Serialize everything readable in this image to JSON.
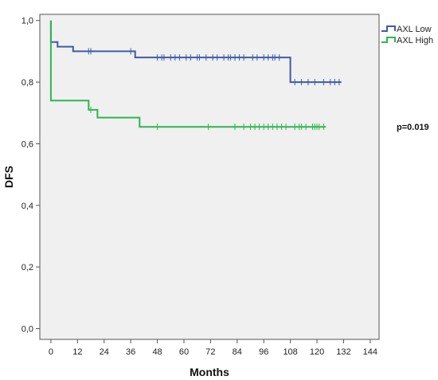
{
  "chart_data": {
    "type": "line",
    "subtype": "kaplan-meier",
    "xlabel": "Months",
    "ylabel": "DFS",
    "xlim": [
      -5,
      148
    ],
    "ylim": [
      -0.035,
      1.02
    ],
    "xticks": [
      0,
      12,
      24,
      36,
      48,
      60,
      72,
      84,
      96,
      108,
      120,
      132,
      144
    ],
    "yticks": [
      {
        "value": 0.0,
        "label": "0,0"
      },
      {
        "value": 0.2,
        "label": "0,2"
      },
      {
        "value": 0.4,
        "label": "0,4"
      },
      {
        "value": 0.6,
        "label": "0,6"
      },
      {
        "value": 0.8,
        "label": "0,8"
      },
      {
        "value": 1.0,
        "label": "1,0"
      }
    ],
    "grid": false,
    "legend_position": "top-right",
    "annotation": "p=0.019",
    "series": [
      {
        "name": "AXL Low",
        "color": "#3b5ca8",
        "steps": [
          [
            0,
            1.0
          ],
          [
            0,
            0.93
          ],
          [
            3,
            0.93
          ],
          [
            3,
            0.915
          ],
          [
            10,
            0.915
          ],
          [
            10,
            0.9
          ],
          [
            38,
            0.9
          ],
          [
            38,
            0.88
          ],
          [
            108,
            0.88
          ],
          [
            108,
            0.8
          ],
          [
            131,
            0.8
          ]
        ],
        "censored": [
          [
            17,
            0.9
          ],
          [
            18,
            0.9
          ],
          [
            36,
            0.9
          ],
          [
            48,
            0.88
          ],
          [
            50,
            0.88
          ],
          [
            51,
            0.88
          ],
          [
            54,
            0.88
          ],
          [
            56,
            0.88
          ],
          [
            58,
            0.88
          ],
          [
            61,
            0.88
          ],
          [
            63,
            0.88
          ],
          [
            66,
            0.88
          ],
          [
            67,
            0.88
          ],
          [
            70,
            0.88
          ],
          [
            73,
            0.88
          ],
          [
            75,
            0.88
          ],
          [
            78,
            0.88
          ],
          [
            80,
            0.88
          ],
          [
            81,
            0.88
          ],
          [
            83,
            0.88
          ],
          [
            85,
            0.88
          ],
          [
            87,
            0.88
          ],
          [
            91,
            0.88
          ],
          [
            93,
            0.88
          ],
          [
            96,
            0.88
          ],
          [
            98,
            0.88
          ],
          [
            100,
            0.88
          ],
          [
            101,
            0.88
          ],
          [
            103,
            0.88
          ],
          [
            110,
            0.8
          ],
          [
            113,
            0.8
          ],
          [
            116,
            0.8
          ],
          [
            119,
            0.8
          ],
          [
            123,
            0.8
          ],
          [
            126,
            0.8
          ],
          [
            128,
            0.8
          ],
          [
            130,
            0.8
          ]
        ]
      },
      {
        "name": "AXL High",
        "color": "#2eb64f",
        "steps": [
          [
            0,
            1.0
          ],
          [
            0,
            0.74
          ],
          [
            17,
            0.74
          ],
          [
            17,
            0.71
          ],
          [
            21,
            0.71
          ],
          [
            21,
            0.685
          ],
          [
            40,
            0.685
          ],
          [
            40,
            0.655
          ],
          [
            124,
            0.655
          ]
        ],
        "censored": [
          [
            18,
            0.71
          ],
          [
            48,
            0.655
          ],
          [
            71,
            0.655
          ],
          [
            83,
            0.655
          ],
          [
            87,
            0.655
          ],
          [
            90,
            0.655
          ],
          [
            92,
            0.655
          ],
          [
            94,
            0.655
          ],
          [
            96,
            0.655
          ],
          [
            98,
            0.655
          ],
          [
            100,
            0.655
          ],
          [
            102,
            0.655
          ],
          [
            104,
            0.655
          ],
          [
            106,
            0.655
          ],
          [
            110,
            0.655
          ],
          [
            112,
            0.655
          ],
          [
            113,
            0.655
          ],
          [
            115,
            0.655
          ],
          [
            118,
            0.655
          ],
          [
            119,
            0.655
          ],
          [
            120,
            0.655
          ],
          [
            121,
            0.655
          ],
          [
            123,
            0.655
          ]
        ]
      }
    ]
  }
}
